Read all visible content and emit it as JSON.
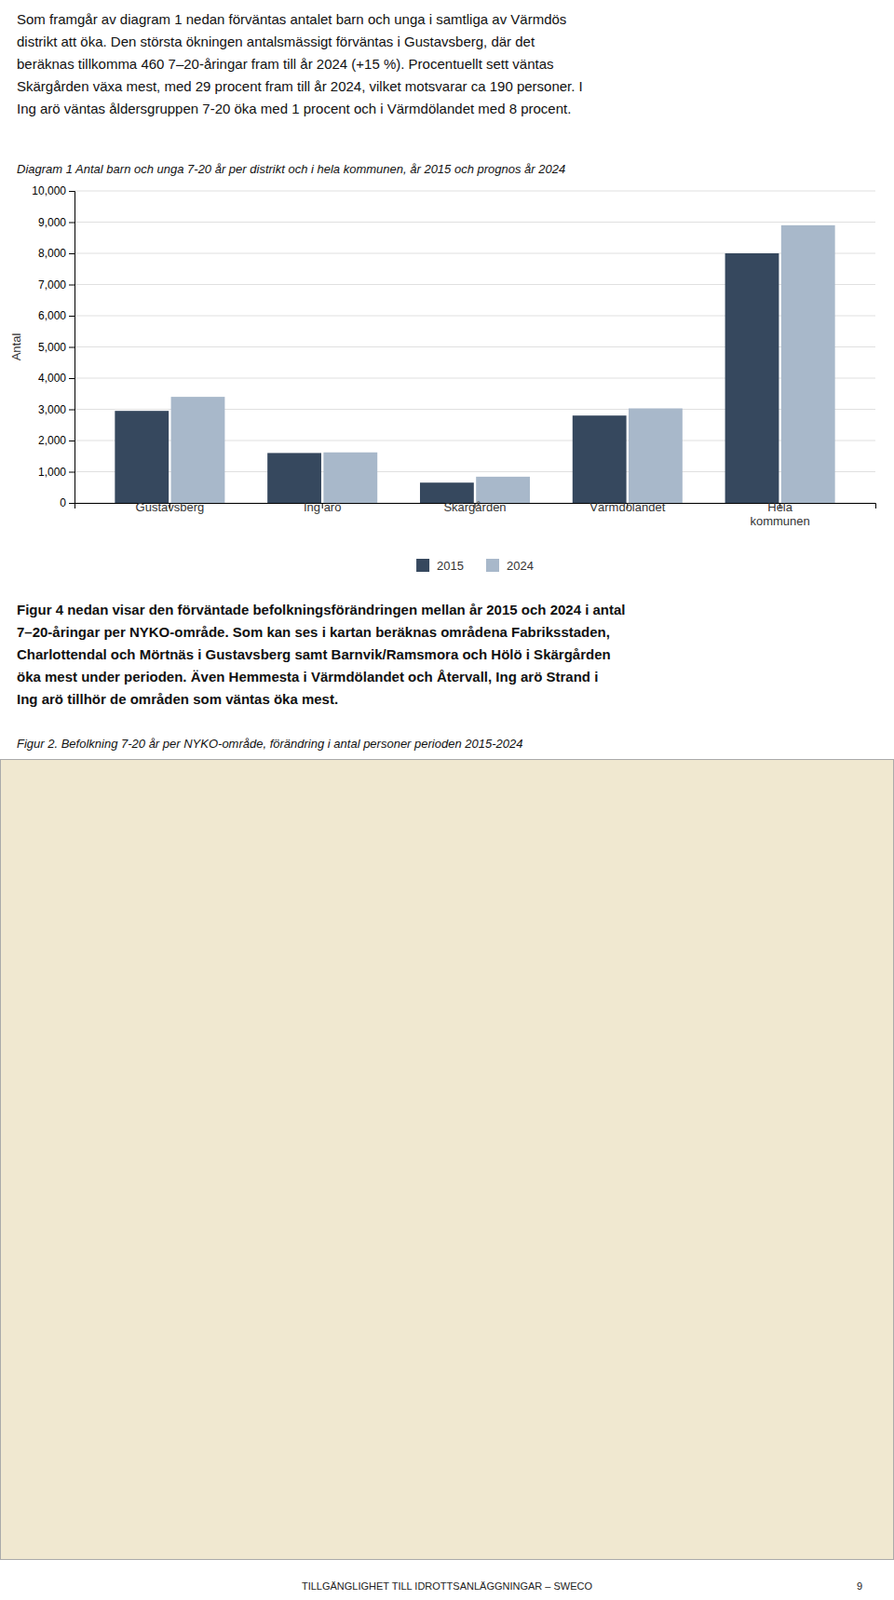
{
  "paragraphs": [
    "Som framgår av diagram 1 nedan förväntas antalet barn och unga i samtliga av Värmdös\ndistrikt att öka. Den största ökningen antalsmässigt förväntas i Gustavsberg, där det\nberäknas tillkomma 460 7–20-åringar fram till år 2024 (+15 %). Procentuellt sett väntas\nSkärgården växa mest, med 29 procent fram till år 2024, vilket motsvarar ca 190 personer. I\nIng arö väntas åldersgruppen 7-20 öka med 1 procent och i Värmdölandet med 8 procent.",
    "Figur 4 nedan visar den förväntade befolkningsförändringen mellan år 2015 och 2024 i antal\n7–20-åringar per NYKO-område. Som kan ses i kartan beräknas områdena Fabriksstaden,\nCharlottendal och Mörtnäs i Gustavsberg samt Barnvik/Ramsmora och Hölö i Skärgården\nöka mest under perioden. Även Hemmesta i Värmdölandet och Återvall, Ing arö Strand i\nIng arö tillhör de områden som väntas öka mest."
  ],
  "figure_caption": "Figur 2.  Befolkning 7-20 år per NYKO-område, förändring i antal personer perioden 2015-2024",
  "footer": "TILLGÄNGLIGHET TILL IDROTTSANLÄGGNINGAR – SWECO",
  "page_number": "9",
  "chart_data": {
    "type": "bar",
    "title": "Diagram 1 Antal barn och unga 7-20 år per distrikt och i hela kommunen, år 2015 och prognos år 2024",
    "ylabel": "Antal",
    "categories": [
      "Gustavsberg",
      "Ing arö",
      "Skärgården",
      "Värmdölandet",
      "Hela\nkommunen"
    ],
    "series": [
      {
        "name": "2015",
        "color": "#36485e",
        "values": [
          2950,
          1600,
          650,
          2800,
          8000
        ]
      },
      {
        "name": "2024",
        "color": "#a8b8ca",
        "values": [
          3400,
          1620,
          840,
          3030,
          8900
        ]
      }
    ],
    "ylim": [
      0,
      10000
    ],
    "yticks": [
      0,
      {
        "value": 1000,
        "label": "1,000"
      },
      {
        "value": 2000,
        "label": "2,000"
      },
      {
        "value": 3000,
        "label": "3,000"
      },
      {
        "value": 4000,
        "label": "4,000"
      },
      {
        "value": 5000,
        "label": "5,000"
      },
      {
        "value": 6000,
        "label": "6,000"
      },
      {
        "value": 7000,
        "label": "7,000"
      },
      {
        "value": 8000,
        "label": "8,000"
      },
      {
        "value": 9000,
        "label": "9,000"
      },
      {
        "value": 10000,
        "label": "10,000"
      }
    ],
    "grid": true,
    "legend": "bottom"
  }
}
